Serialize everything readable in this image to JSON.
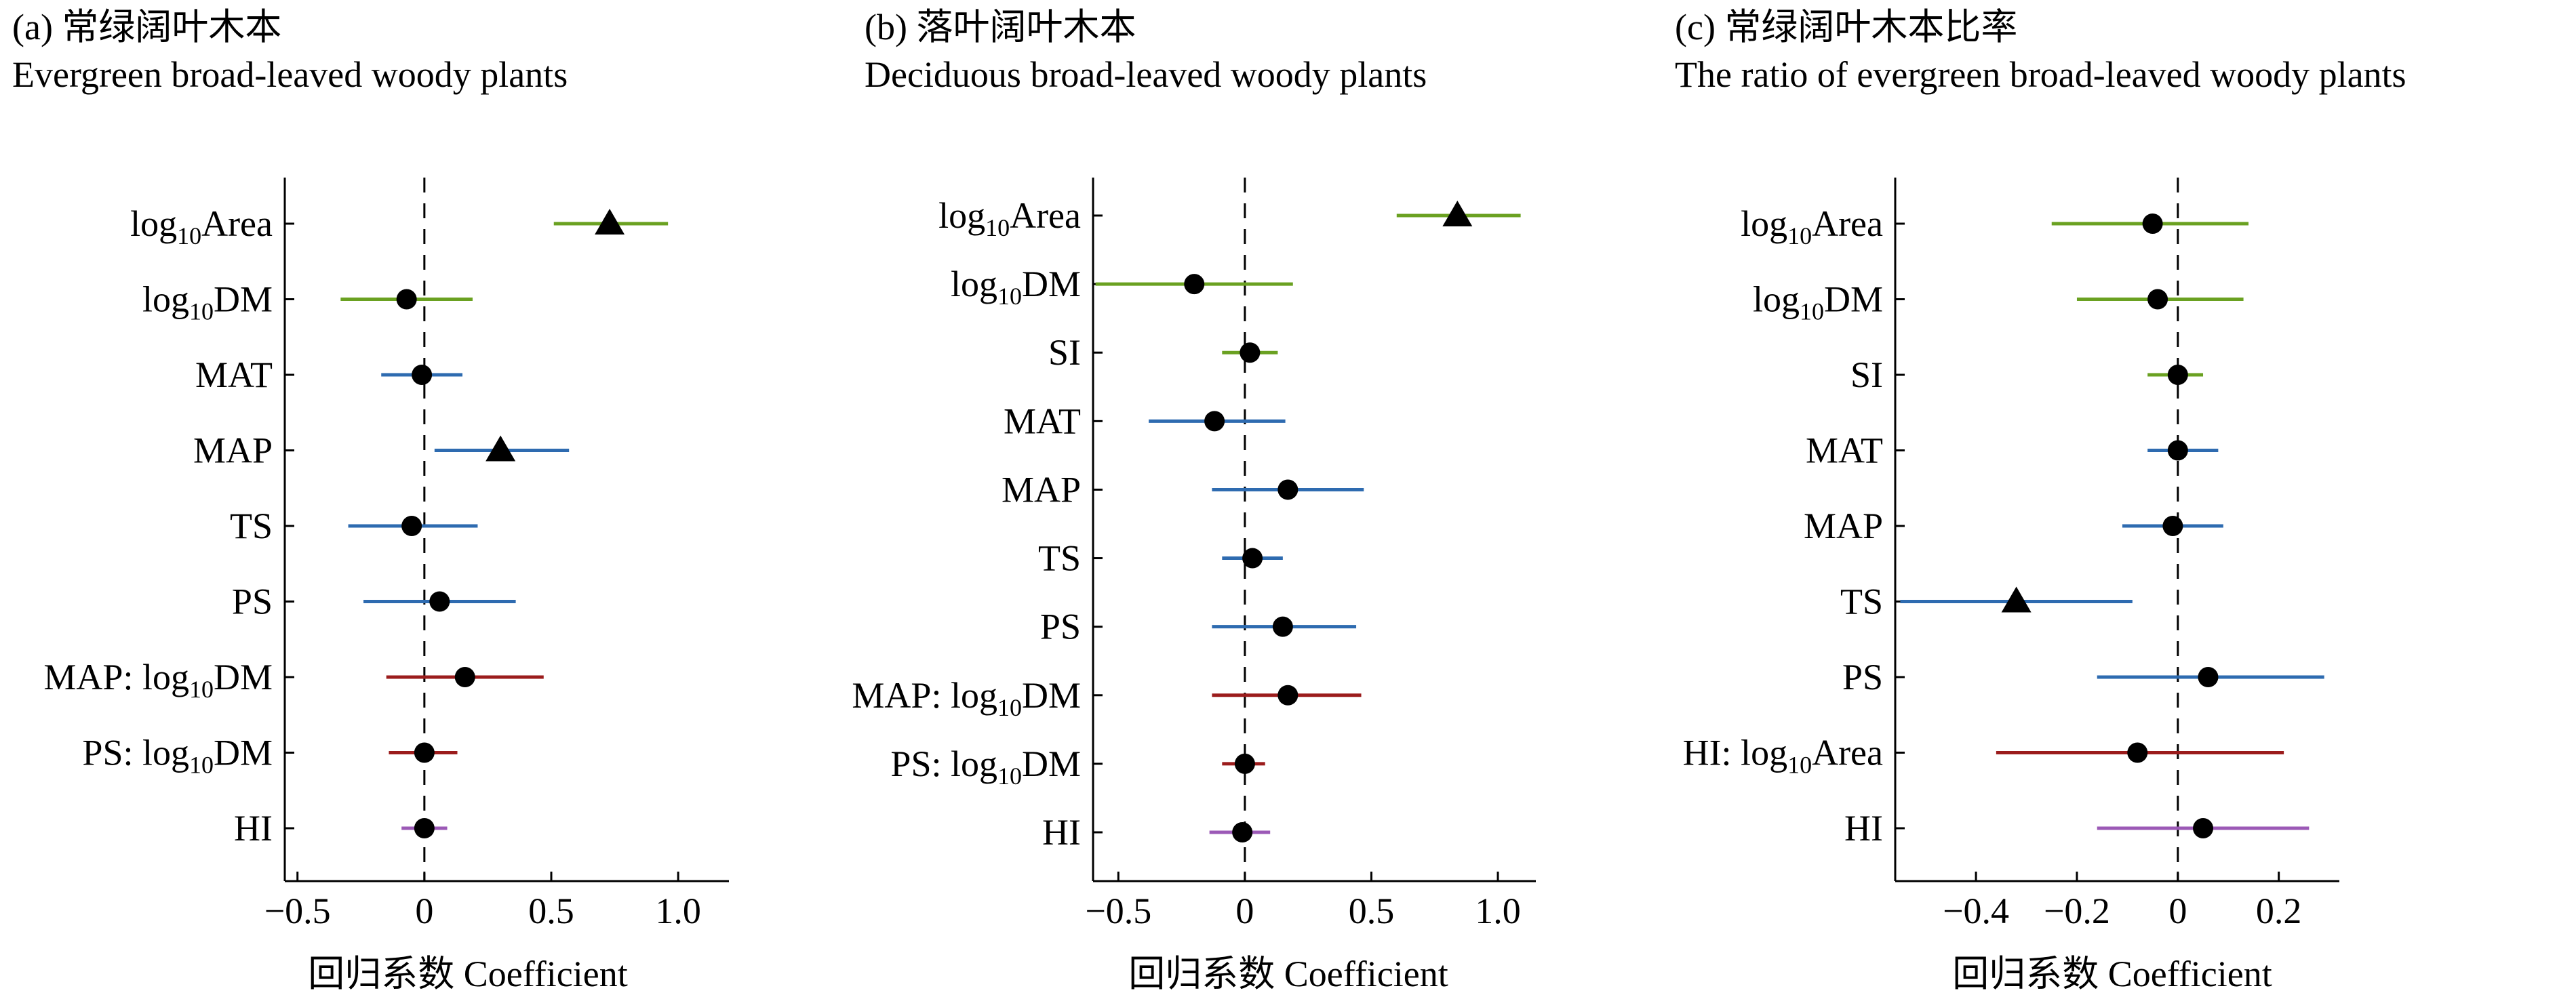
{
  "chart_data": [
    {
      "type": "forest",
      "title_cn": "(a) 常绿阔叶木本",
      "title_en": "Evergreen broad-leaved woody plants",
      "xlabel": "回归系数 Coefficient",
      "xlim": [
        -0.55,
        1.2
      ],
      "xticks": [
        -0.5,
        0,
        0.5,
        1.0
      ],
      "xtick_labels": [
        "−0.5",
        "0",
        "0.5",
        "1.0"
      ],
      "rows": [
        {
          "label": "log",
          "sub": "10",
          "suffix": "Area",
          "estimate": 0.73,
          "low": 0.51,
          "high": 0.96,
          "marker": "triangle",
          "color": "#6aa121"
        },
        {
          "label": "log",
          "sub": "10",
          "suffix": "DM",
          "estimate": -0.07,
          "low": -0.33,
          "high": 0.19,
          "marker": "circle",
          "color": "#6aa121"
        },
        {
          "label": "MAT",
          "estimate": -0.01,
          "low": -0.17,
          "high": 0.15,
          "marker": "circle",
          "color": "#2e6bb0"
        },
        {
          "label": "MAP",
          "estimate": 0.3,
          "low": 0.04,
          "high": 0.57,
          "marker": "triangle",
          "color": "#2e6bb0"
        },
        {
          "label": "TS",
          "estimate": -0.05,
          "low": -0.3,
          "high": 0.21,
          "marker": "circle",
          "color": "#2e6bb0"
        },
        {
          "label": "PS",
          "estimate": 0.06,
          "low": -0.24,
          "high": 0.36,
          "marker": "circle",
          "color": "#2e6bb0"
        },
        {
          "label": "MAP: log",
          "sub": "10",
          "suffix": "DM",
          "estimate": 0.16,
          "low": -0.15,
          "high": 0.47,
          "marker": "circle",
          "color": "#9b1c1c"
        },
        {
          "label": "PS: log",
          "sub": "10",
          "suffix": "DM",
          "estimate": 0.0,
          "low": -0.14,
          "high": 0.13,
          "marker": "circle",
          "color": "#9b1c1c"
        },
        {
          "label": "HI",
          "estimate": 0.0,
          "low": -0.09,
          "high": 0.09,
          "marker": "circle",
          "color": "#9b59b6"
        }
      ]
    },
    {
      "type": "forest",
      "title_cn": "(b) 落叶阔叶木本",
      "title_en": "Deciduous broad-leaved woody plants",
      "xlabel": "回归系数 Coefficient",
      "xlim": [
        -0.6,
        1.15
      ],
      "xticks": [
        -0.5,
        0,
        0.5,
        1.0
      ],
      "xtick_labels": [
        "−0.5",
        "0",
        "0.5",
        "1.0"
      ],
      "rows": [
        {
          "label": "log",
          "sub": "10",
          "suffix": "Area",
          "estimate": 0.84,
          "low": 0.6,
          "high": 1.09,
          "marker": "triangle",
          "color": "#6aa121"
        },
        {
          "label": "log",
          "sub": "10",
          "suffix": "DM",
          "estimate": -0.2,
          "low": -0.59,
          "high": 0.19,
          "marker": "circle",
          "color": "#6aa121"
        },
        {
          "label": "SI",
          "estimate": 0.02,
          "low": -0.09,
          "high": 0.13,
          "marker": "circle",
          "color": "#6aa121"
        },
        {
          "label": "MAT",
          "estimate": -0.12,
          "low": -0.38,
          "high": 0.16,
          "marker": "circle",
          "color": "#2e6bb0"
        },
        {
          "label": "MAP",
          "estimate": 0.17,
          "low": -0.13,
          "high": 0.47,
          "marker": "circle",
          "color": "#2e6bb0"
        },
        {
          "label": "TS",
          "estimate": 0.03,
          "low": -0.09,
          "high": 0.15,
          "marker": "circle",
          "color": "#2e6bb0"
        },
        {
          "label": "PS",
          "estimate": 0.15,
          "low": -0.13,
          "high": 0.44,
          "marker": "circle",
          "color": "#2e6bb0"
        },
        {
          "label": "MAP: log",
          "sub": "10",
          "suffix": "DM",
          "estimate": 0.17,
          "low": -0.13,
          "high": 0.46,
          "marker": "circle",
          "color": "#9b1c1c"
        },
        {
          "label": "PS: log",
          "sub": "10",
          "suffix": "DM",
          "estimate": 0.0,
          "low": -0.09,
          "high": 0.08,
          "marker": "circle",
          "color": "#9b1c1c"
        },
        {
          "label": "HI",
          "estimate": -0.01,
          "low": -0.14,
          "high": 0.1,
          "marker": "circle",
          "color": "#9b59b6"
        }
      ]
    },
    {
      "type": "forest",
      "title_cn": "(c) 常绿阔叶木本比率",
      "title_en": "The ratio of evergreen broad-leaved woody plants",
      "xlabel": "回归系数 Coefficient",
      "xlim": [
        -0.56,
        0.32
      ],
      "xticks": [
        -0.4,
        -0.2,
        0,
        0.2
      ],
      "xtick_labels": [
        "−0.4",
        "−0.2",
        "0",
        "0.2"
      ],
      "rows": [
        {
          "label": "log",
          "sub": "10",
          "suffix": "Area",
          "estimate": -0.05,
          "low": -0.25,
          "high": 0.14,
          "marker": "circle",
          "color": "#6aa121"
        },
        {
          "label": "log",
          "sub": "10",
          "suffix": "DM",
          "estimate": -0.04,
          "low": -0.2,
          "high": 0.13,
          "marker": "circle",
          "color": "#6aa121"
        },
        {
          "label": "SI",
          "estimate": 0.0,
          "low": -0.06,
          "high": 0.05,
          "marker": "circle",
          "color": "#6aa121"
        },
        {
          "label": "MAT",
          "estimate": 0.0,
          "low": -0.06,
          "high": 0.08,
          "marker": "circle",
          "color": "#2e6bb0"
        },
        {
          "label": "MAP",
          "estimate": -0.01,
          "low": -0.11,
          "high": 0.09,
          "marker": "circle",
          "color": "#2e6bb0"
        },
        {
          "label": "TS",
          "estimate": -0.32,
          "low": -0.55,
          "high": -0.09,
          "marker": "triangle",
          "color": "#2e6bb0"
        },
        {
          "label": "PS",
          "estimate": 0.06,
          "low": -0.16,
          "high": 0.29,
          "marker": "circle",
          "color": "#2e6bb0"
        },
        {
          "label": "HI: log",
          "sub": "10",
          "suffix": "Area",
          "estimate": -0.08,
          "low": -0.36,
          "high": 0.21,
          "marker": "circle",
          "color": "#9b1c1c"
        },
        {
          "label": "HI",
          "estimate": 0.05,
          "low": -0.16,
          "high": 0.26,
          "marker": "circle",
          "color": "#9b59b6"
        }
      ]
    }
  ]
}
